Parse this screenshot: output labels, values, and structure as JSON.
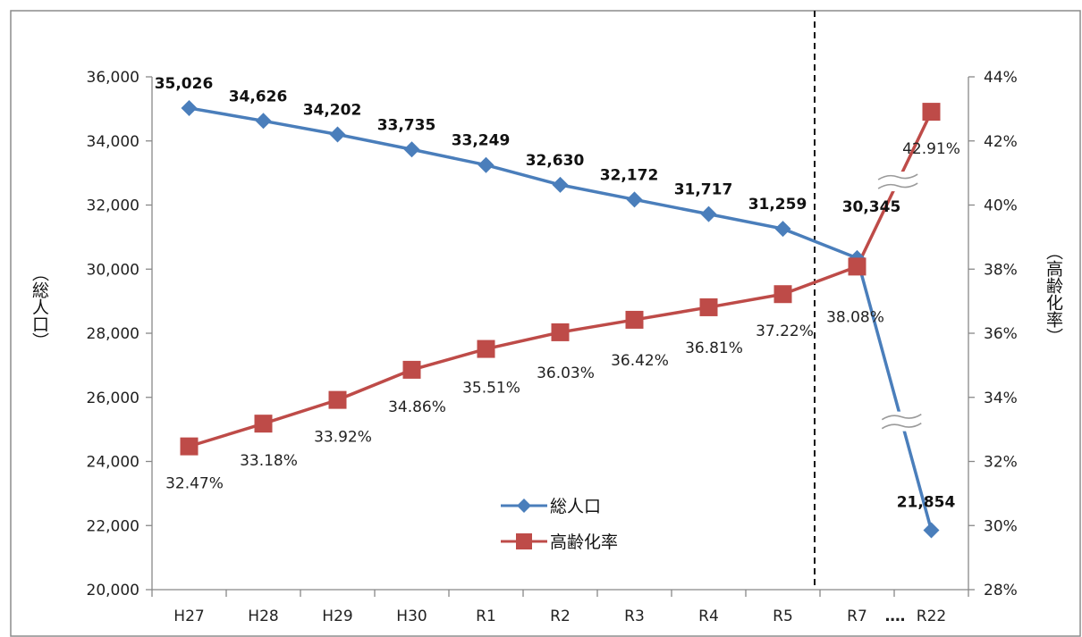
{
  "chart_data": {
    "type": "line",
    "categories": [
      "H27",
      "H28",
      "H29",
      "H30",
      "R1",
      "R2",
      "R3",
      "R4",
      "R5",
      "R7",
      "R22"
    ],
    "category_separator": "‥‥",
    "series": [
      {
        "name": "総人口",
        "axis": "left",
        "color": "#4a7ebb",
        "marker": "diamond",
        "values": [
          35026,
          34626,
          34202,
          33735,
          33249,
          32630,
          32172,
          31717,
          31259,
          30345,
          21854
        ],
        "labels": [
          "35,026",
          "34,626",
          "34,202",
          "33,735",
          "33,249",
          "32,630",
          "32,172",
          "31,717",
          "31,259",
          "30,345",
          "21,854"
        ]
      },
      {
        "name": "高齢化率",
        "axis": "right",
        "color": "#be4b48",
        "marker": "square",
        "values": [
          32.47,
          33.18,
          33.92,
          34.86,
          35.51,
          36.03,
          36.42,
          36.81,
          37.22,
          38.08,
          42.91
        ],
        "labels": [
          "32.47%",
          "33.18%",
          "33.92%",
          "34.86%",
          "35.51%",
          "36.03%",
          "36.42%",
          "36.81%",
          "37.22%",
          "38.08%",
          "42.91%"
        ]
      }
    ],
    "y_left": {
      "label": "（総人口）",
      "ylim": [
        20000,
        36000
      ],
      "ticks": [
        "20,000",
        "22,000",
        "24,000",
        "26,000",
        "28,000",
        "30,000",
        "32,000",
        "34,000",
        "36,000"
      ]
    },
    "y_right": {
      "label": "（高齢化率）",
      "ylim": [
        28,
        44
      ],
      "ticks": [
        "28%",
        "30%",
        "32%",
        "34%",
        "36%",
        "38%",
        "40%",
        "42%",
        "44%"
      ]
    },
    "grid": false,
    "legend_position": "bottom-center",
    "annotations": {
      "projection_divider": "dashed vertical line between R5 and R7",
      "axis_break_marks": "≈ break marks on both series between R7 and R22"
    }
  }
}
